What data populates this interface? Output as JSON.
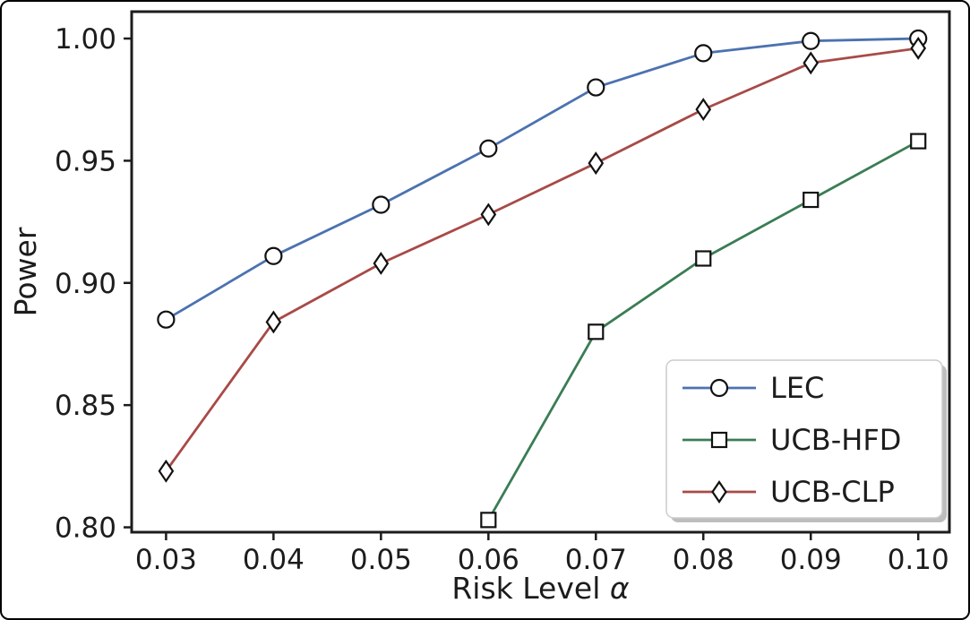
{
  "chart_data": {
    "type": "line",
    "title": "",
    "xlabel": "Risk Level α",
    "ylabel": "Power",
    "xlim": [
      0.0268,
      0.1029
    ],
    "ylim": [
      0.798,
      1.011
    ],
    "x_ticks": [
      "0.03",
      "0.04",
      "0.05",
      "0.06",
      "0.07",
      "0.08",
      "0.09",
      "0.10"
    ],
    "x_tick_values": [
      0.03,
      0.04,
      0.05,
      0.06,
      0.07,
      0.08,
      0.09,
      0.1
    ],
    "y_ticks": [
      "0.80",
      "0.85",
      "0.90",
      "0.95",
      "1.00"
    ],
    "y_tick_values": [
      0.8,
      0.85,
      0.9,
      0.95,
      1.0
    ],
    "grid": false,
    "legend_position": "lower right",
    "series": [
      {
        "name": "LEC",
        "color": "#4C72B0",
        "marker": "circle",
        "x": [
          0.03,
          0.04,
          0.05,
          0.06,
          0.07,
          0.08,
          0.09,
          0.1
        ],
        "y": [
          0.885,
          0.911,
          0.932,
          0.955,
          0.98,
          0.994,
          0.999,
          1.0
        ]
      },
      {
        "name": "UCB-HFD",
        "color": "#3A7D54",
        "marker": "square",
        "x": [
          0.06,
          0.07,
          0.08,
          0.09,
          0.1
        ],
        "y": [
          0.803,
          0.88,
          0.91,
          0.934,
          0.958
        ]
      },
      {
        "name": "UCB-CLP",
        "color": "#A84A47",
        "marker": "diamond",
        "x": [
          0.03,
          0.04,
          0.05,
          0.06,
          0.07,
          0.08,
          0.09,
          0.1
        ],
        "y": [
          0.823,
          0.884,
          0.908,
          0.928,
          0.949,
          0.971,
          0.99,
          0.996
        ]
      }
    ],
    "marker_face_color": "#ffffff",
    "marker_edge_color": "#111111",
    "axis_color": "#1c1c1c"
  }
}
